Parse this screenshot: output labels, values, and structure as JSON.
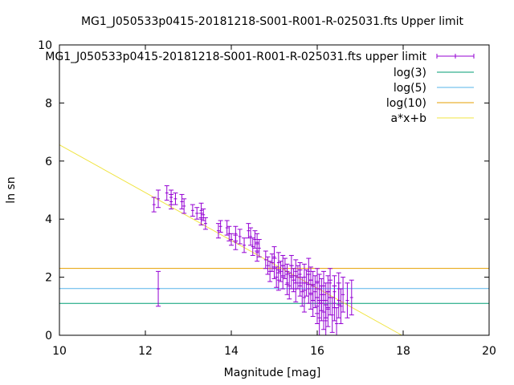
{
  "chart_data": {
    "type": "scatter",
    "title": "MG1_J050533p0415-20181218-S001-R001-R-025031.fts Upper limit",
    "xlabel": "Magnitude [mag]",
    "ylabel": "ln sn",
    "xlim": [
      10,
      20
    ],
    "ylim": [
      0,
      10
    ],
    "xticks": [
      "10",
      "12",
      "14",
      "16",
      "18",
      "20"
    ],
    "yticks": [
      "0",
      "2",
      "4",
      "6",
      "8",
      "10"
    ],
    "grid": false,
    "legend_position": "top-right",
    "series": [
      {
        "name": "MG1_J050533p0415-20181218-S001-R001-R-025031.fts upper limit",
        "kind": "errorbar",
        "color": "#9400d3",
        "points": [
          [
            12.2,
            4.5,
            0.25
          ],
          [
            12.3,
            4.7,
            0.3
          ],
          [
            12.3,
            1.6,
            0.6
          ],
          [
            12.5,
            4.9,
            0.25
          ],
          [
            12.6,
            4.75,
            0.25
          ],
          [
            12.6,
            4.6,
            0.25
          ],
          [
            12.7,
            4.7,
            0.2
          ],
          [
            12.85,
            4.6,
            0.25
          ],
          [
            12.9,
            4.45,
            0.25
          ],
          [
            13.1,
            4.3,
            0.2
          ],
          [
            13.2,
            4.2,
            0.2
          ],
          [
            13.3,
            4.3,
            0.25
          ],
          [
            13.3,
            4.0,
            0.2
          ],
          [
            13.35,
            4.15,
            0.2
          ],
          [
            13.4,
            3.85,
            0.2
          ],
          [
            13.7,
            3.6,
            0.25
          ],
          [
            13.75,
            3.75,
            0.2
          ],
          [
            13.9,
            3.7,
            0.25
          ],
          [
            13.95,
            3.5,
            0.25
          ],
          [
            14.0,
            3.3,
            0.2
          ],
          [
            14.1,
            3.5,
            0.25
          ],
          [
            14.1,
            3.2,
            0.25
          ],
          [
            14.2,
            3.4,
            0.25
          ],
          [
            14.3,
            3.1,
            0.25
          ],
          [
            14.4,
            3.6,
            0.25
          ],
          [
            14.45,
            3.4,
            0.3
          ],
          [
            14.5,
            3.05,
            0.3
          ],
          [
            14.55,
            3.3,
            0.3
          ],
          [
            14.6,
            3.2,
            0.3
          ],
          [
            14.6,
            2.85,
            0.3
          ],
          [
            14.65,
            3.0,
            0.3
          ],
          [
            14.8,
            2.6,
            0.3
          ],
          [
            14.85,
            2.4,
            0.3
          ],
          [
            14.9,
            2.2,
            0.35
          ],
          [
            14.95,
            2.5,
            0.3
          ],
          [
            15.0,
            2.7,
            0.35
          ],
          [
            15.0,
            2.3,
            0.35
          ],
          [
            15.05,
            2.0,
            0.35
          ],
          [
            15.1,
            2.5,
            0.35
          ],
          [
            15.1,
            1.9,
            0.35
          ],
          [
            15.15,
            2.2,
            0.35
          ],
          [
            15.2,
            2.4,
            0.35
          ],
          [
            15.2,
            2.0,
            0.4
          ],
          [
            15.25,
            2.3,
            0.35
          ],
          [
            15.3,
            1.8,
            0.4
          ],
          [
            15.3,
            2.1,
            0.35
          ],
          [
            15.35,
            1.7,
            0.45
          ],
          [
            15.4,
            2.4,
            0.35
          ],
          [
            15.4,
            2.0,
            0.4
          ],
          [
            15.45,
            1.9,
            0.4
          ],
          [
            15.5,
            2.2,
            0.4
          ],
          [
            15.5,
            1.6,
            0.45
          ],
          [
            15.55,
            2.0,
            0.4
          ],
          [
            15.6,
            1.8,
            0.45
          ],
          [
            15.6,
            2.1,
            0.4
          ],
          [
            15.65,
            1.5,
            0.5
          ],
          [
            15.7,
            2.0,
            0.45
          ],
          [
            15.7,
            1.3,
            0.5
          ],
          [
            15.75,
            1.8,
            0.45
          ],
          [
            15.8,
            1.6,
            0.5
          ],
          [
            15.8,
            2.2,
            0.45
          ],
          [
            15.85,
            1.4,
            0.5
          ],
          [
            15.85,
            1.9,
            0.45
          ],
          [
            15.9,
            1.2,
            0.55
          ],
          [
            15.9,
            1.7,
            0.5
          ],
          [
            15.95,
            1.5,
            0.55
          ],
          [
            16.0,
            1.0,
            0.6
          ],
          [
            16.0,
            1.8,
            0.5
          ],
          [
            16.0,
            1.3,
            0.55
          ],
          [
            16.05,
            0.6,
            0.6
          ],
          [
            16.05,
            1.6,
            0.5
          ],
          [
            16.1,
            1.1,
            0.6
          ],
          [
            16.1,
            1.4,
            0.55
          ],
          [
            16.15,
            0.8,
            0.6
          ],
          [
            16.15,
            1.7,
            0.5
          ],
          [
            16.2,
            1.2,
            0.6
          ],
          [
            16.2,
            0.5,
            0.55
          ],
          [
            16.25,
            1.5,
            0.55
          ],
          [
            16.25,
            0.9,
            0.6
          ],
          [
            16.3,
            1.3,
            0.6
          ],
          [
            16.3,
            1.8,
            0.5
          ],
          [
            16.35,
            0.7,
            0.6
          ],
          [
            16.4,
            1.1,
            0.6
          ],
          [
            16.4,
            1.5,
            0.55
          ],
          [
            16.45,
            0.4,
            0.55
          ],
          [
            16.5,
            1.2,
            0.6
          ],
          [
            16.5,
            1.6,
            0.55
          ],
          [
            16.55,
            1.0,
            0.6
          ],
          [
            16.6,
            1.4,
            0.6
          ],
          [
            16.7,
            1.2,
            0.6
          ],
          [
            16.8,
            1.3,
            0.6
          ]
        ]
      },
      {
        "name": "log(3)",
        "kind": "hline",
        "y": 1.0986,
        "color": "#009e73"
      },
      {
        "name": "log(5)",
        "kind": "hline",
        "y": 1.6094,
        "color": "#56b4e9"
      },
      {
        "name": "log(10)",
        "kind": "hline",
        "y": 2.3026,
        "color": "#e69f00"
      },
      {
        "name": "a*x+b",
        "kind": "fit",
        "a": -0.823,
        "b": 14.79,
        "color": "#f0e442"
      }
    ]
  }
}
